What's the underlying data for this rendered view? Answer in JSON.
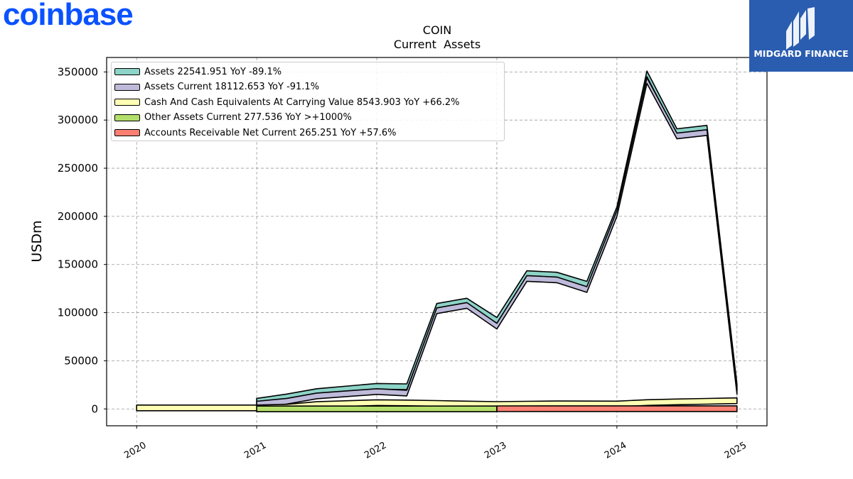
{
  "brand": {
    "text": "coinbase",
    "color": "#0a52ff"
  },
  "badge": {
    "text": "MIDGARD FINANCE",
    "bg": "#2a5db0"
  },
  "chart_data": {
    "type": "area",
    "title": "COIN",
    "subtitle": "Current  Assets",
    "ylabel": "USDm",
    "xlabel": "",
    "ylim": [
      -17500,
      365000
    ],
    "xlim": [
      2019.75,
      2025.25
    ],
    "yticks": [
      0,
      50000,
      100000,
      150000,
      200000,
      250000,
      300000,
      350000
    ],
    "xticks": [
      2020,
      2021,
      2022,
      2023,
      2024,
      2025
    ],
    "ytick_labels": [
      "0",
      "50000",
      "100000",
      "150000",
      "200000",
      "250000",
      "300000",
      "350000"
    ],
    "xtick_labels": [
      "2020",
      "2021",
      "2022",
      "2023",
      "2024",
      "2025"
    ],
    "grid": true,
    "legend_position": "top-left",
    "series": [
      {
        "name": "Assets",
        "legend": "Assets  22541.951 YoY -89.1%",
        "color": "#8dd3c7",
        "x": [
          2021.0,
          2021.25,
          2021.5,
          2022.0,
          2022.25,
          2022.5,
          2022.75,
          2023.0,
          2023.25,
          2023.5,
          2023.75,
          2024.0,
          2024.25,
          2024.5,
          2024.75,
          2025.0
        ],
        "values": [
          8000,
          12500,
          18000,
          23500,
          23000,
          106500,
          112000,
          92000,
          140500,
          139000,
          129500,
          207000,
          348000,
          288000,
          291500,
          22500
        ]
      },
      {
        "name": "Assets Current",
        "legend": "Assets Current  18112.653 YoY -91.1%",
        "color": "#bebada",
        "x": [
          2021.0,
          2021.25,
          2021.5,
          2022.0,
          2022.25,
          2022.5,
          2022.75,
          2023.0,
          2023.25,
          2023.5,
          2023.75,
          2024.0,
          2024.25,
          2024.5,
          2024.75,
          2025.0
        ],
        "values": [
          5000,
          8000,
          13500,
          18000,
          16500,
          102000,
          107500,
          86000,
          135500,
          134000,
          124000,
          203000,
          341000,
          283500,
          287000,
          18100
        ]
      },
      {
        "name": "Cash And Cash Equivalents At Carrying Value",
        "legend": "Cash And Cash Equivalents At Carrying Value  8543.903 YoY +66.2%",
        "color": "#ffffb3",
        "x": [
          2020.0,
          2021.0,
          2021.25,
          2021.5,
          2022.0,
          2022.25,
          2022.5,
          2022.75,
          2023.0,
          2023.25,
          2023.5,
          2023.75,
          2024.0,
          2024.25,
          2024.5,
          2024.75,
          2025.0
        ],
        "values": [
          1100,
          1100,
          1800,
          4500,
          6500,
          6200,
          5700,
          5100,
          4600,
          5000,
          5300,
          5200,
          5100,
          6600,
          7300,
          7900,
          8544
        ]
      },
      {
        "name": "Other Assets Current",
        "legend": "Other Assets Current  277.536 YoY >+1000%",
        "color": "#b3de69",
        "x": [
          2021.0,
          2023.0
        ],
        "values": [
          25,
          25
        ]
      },
      {
        "name": "Accounts Receivable Net Current",
        "legend": "Accounts Receivable Net Current  265.251 YoY +57.6%",
        "color": "#fb8072",
        "x": [
          2023.0,
          2025.0
        ],
        "values": [
          168,
          265
        ]
      }
    ]
  }
}
